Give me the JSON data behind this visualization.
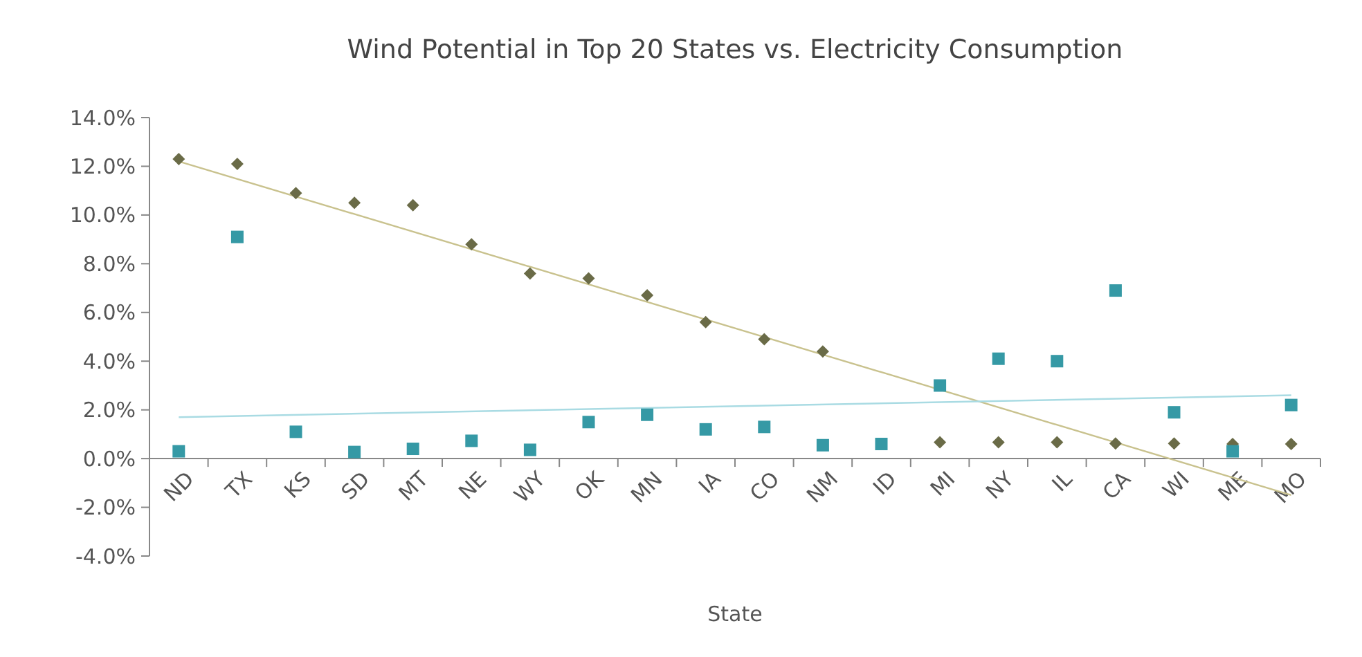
{
  "chart_data": {
    "type": "scatter",
    "title": "Wind Potential in Top 20 States vs. Electricity Consumption",
    "xlabel": "State",
    "categories": [
      "ND",
      "TX",
      "KS",
      "SD",
      "MT",
      "NE",
      "WY",
      "OK",
      "MN",
      "IA",
      "CO",
      "NM",
      "ID",
      "MI",
      "NY",
      "IL",
      "CA",
      "WI",
      "ME",
      "MO"
    ],
    "ylim": [
      -4,
      14
    ],
    "yticks": [
      {
        "value": -4,
        "label": "-4.0%"
      },
      {
        "value": -2,
        "label": "-2.0%"
      },
      {
        "value": 0,
        "label": "0.0%"
      },
      {
        "value": 2,
        "label": "2.0%"
      },
      {
        "value": 4,
        "label": "4.0%"
      },
      {
        "value": 6,
        "label": "6.0%"
      },
      {
        "value": 8,
        "label": "8.0%"
      },
      {
        "value": 10,
        "label": "10.0%"
      },
      {
        "value": 12,
        "label": "12.0%"
      },
      {
        "value": 14,
        "label": "14.0%"
      }
    ],
    "grid": false,
    "series": [
      {
        "type": "line",
        "color": "#c9c28e",
        "x": [
          "ND",
          "MO"
        ],
        "values": [
          12.2,
          -1.5
        ],
        "marker": "none"
      },
      {
        "type": "line",
        "color": "#a9dbe3",
        "x": [
          "ND",
          "MO"
        ],
        "values": [
          1.7,
          2.6
        ],
        "marker": "none"
      },
      {
        "color": "#6a6b47",
        "marker": "diamond",
        "values": [
          12.3,
          12.1,
          10.9,
          10.5,
          10.4,
          8.8,
          7.6,
          7.4,
          6.7,
          5.6,
          4.9,
          4.4,
          null,
          0.67,
          0.67,
          0.67,
          0.62,
          0.62,
          0.6,
          0.6
        ]
      },
      {
        "color": "#3599a5",
        "marker": "square",
        "values": [
          0.3,
          9.1,
          1.1,
          0.27,
          0.4,
          0.73,
          0.36,
          1.5,
          1.8,
          1.2,
          1.3,
          0.55,
          0.6,
          3.0,
          4.1,
          4.0,
          6.9,
          1.9,
          0.3,
          2.2
        ]
      }
    ]
  }
}
